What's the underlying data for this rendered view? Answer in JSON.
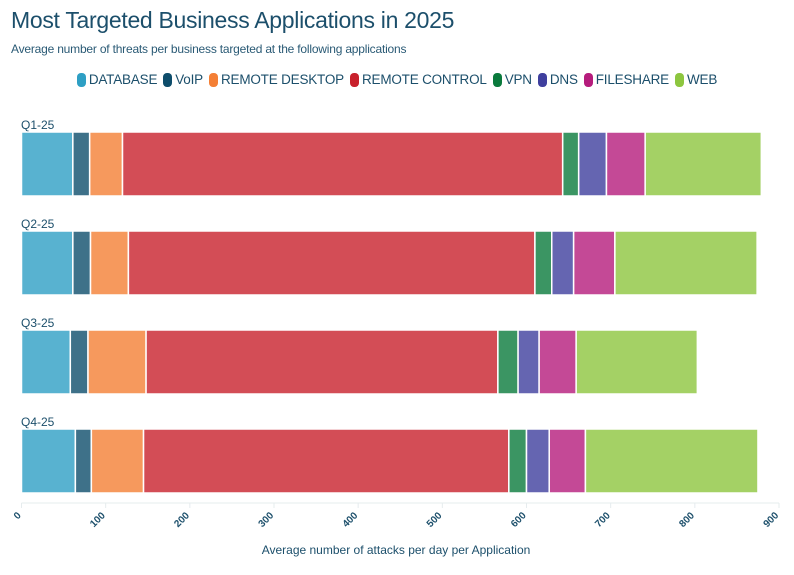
{
  "chart_data": {
    "type": "bar",
    "orientation": "horizontal",
    "stacked": true,
    "title": "Most Targeted Business Applications in 2025",
    "subtitle": "Average number of threats per business targeted at the following applications",
    "xlabel": "Average number of attacks per day per Application",
    "ylabel": "",
    "xlim": [
      0,
      900
    ],
    "xticks": [
      "0",
      "100",
      "200",
      "300",
      "400",
      "500",
      "600",
      "700",
      "800",
      "900"
    ],
    "categories": [
      "Q1-25",
      "Q2-25",
      "Q3-25",
      "Q4-25"
    ],
    "legend_position": "top",
    "grid": false,
    "series": [
      {
        "name": "DATABASE",
        "color": "#2e9fc4",
        "values": [
          61,
          61,
          58,
          64
        ]
      },
      {
        "name": "VoIP",
        "color": "#0e4d6b",
        "values": [
          20,
          21,
          21,
          19
        ]
      },
      {
        "name": "REMOTE DESKTOP",
        "color": "#f47f35",
        "values": [
          39,
          45,
          69,
          62
        ]
      },
      {
        "name": "REMOTE CONTROL",
        "color": "#c8202c",
        "values": [
          523,
          483,
          418,
          434
        ]
      },
      {
        "name": "VPN",
        "color": "#0a7a3c",
        "values": [
          19,
          20,
          24,
          21
        ]
      },
      {
        "name": "DNS",
        "color": "#3f3f9e",
        "values": [
          33,
          26,
          25,
          27
        ]
      },
      {
        "name": "FILESHARE",
        "color": "#b51c7c",
        "values": [
          46,
          49,
          44,
          43
        ]
      },
      {
        "name": "WEB",
        "color": "#8dc63f",
        "values": [
          138,
          169,
          144,
          205
        ]
      }
    ]
  }
}
